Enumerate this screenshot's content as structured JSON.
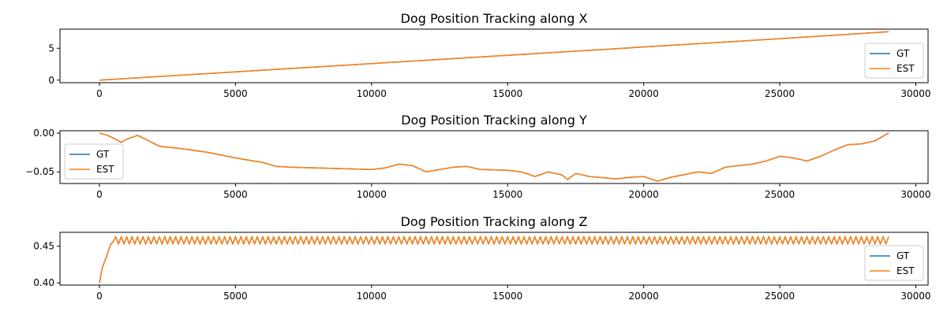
{
  "colors": {
    "gt": "#1f77b4",
    "est": "#ff7f0e",
    "axis": "#000000",
    "legend_border": "#cccccc"
  },
  "chart_data": [
    {
      "type": "line",
      "title": "Dog Position Tracking along X",
      "xlim": [
        -1450,
        30450
      ],
      "ylim": [
        -0.4,
        8.0
      ],
      "xticks": [
        0,
        5000,
        10000,
        15000,
        20000,
        25000,
        30000
      ],
      "xtick_labels": [
        "0",
        "5000",
        "10000",
        "15000",
        "20000",
        "25000",
        "30000"
      ],
      "yticks": [
        0,
        5
      ],
      "ytick_labels": [
        "0",
        "5"
      ],
      "legend": {
        "loc": "lower right",
        "entries": [
          "GT",
          "EST"
        ]
      },
      "series": [
        {
          "name": "GT",
          "x": [
            0,
            5000,
            10000,
            15000,
            20000,
            25000,
            29000
          ],
          "values": [
            0.0,
            1.3,
            2.6,
            3.9,
            5.2,
            6.5,
            7.6
          ]
        },
        {
          "name": "EST",
          "x": [
            0,
            5000,
            10000,
            15000,
            20000,
            25000,
            29000
          ],
          "values": [
            0.0,
            1.3,
            2.6,
            3.9,
            5.2,
            6.5,
            7.6
          ]
        }
      ]
    },
    {
      "type": "line",
      "title": "Dog Position Tracking along Y",
      "xlim": [
        -1450,
        30450
      ],
      "ylim": [
        -0.065,
        0.003
      ],
      "xticks": [
        0,
        5000,
        10000,
        15000,
        20000,
        25000,
        30000
      ],
      "xtick_labels": [
        "0",
        "5000",
        "10000",
        "15000",
        "20000",
        "25000",
        "30000"
      ],
      "yticks": [
        0.0,
        -0.05
      ],
      "ytick_labels": [
        "0.00",
        "−0.05"
      ],
      "legend": {
        "loc": "lower left",
        "entries": [
          "GT",
          "EST"
        ]
      },
      "series": [
        {
          "name": "GT",
          "x": [
            0,
            300,
            600,
            800,
            1000,
            1400,
            1700,
            2200,
            3000,
            4000,
            5000,
            6000,
            6500,
            7000,
            8000,
            9000,
            10000,
            10500,
            11000,
            11500,
            12000,
            13000,
            13500,
            14000,
            15000,
            15500,
            16000,
            16500,
            17000,
            17200,
            17500,
            18000,
            19000,
            19500,
            20000,
            20500,
            21000,
            22000,
            22500,
            23000,
            24000,
            24500,
            25000,
            25500,
            26000,
            26500,
            27000,
            27500,
            28000,
            28500,
            29000
          ],
          "values": [
            0.0,
            -0.003,
            -0.008,
            -0.012,
            -0.008,
            -0.003,
            -0.008,
            -0.017,
            -0.02,
            -0.025,
            -0.032,
            -0.038,
            -0.043,
            -0.044,
            -0.045,
            -0.046,
            -0.047,
            -0.045,
            -0.04,
            -0.042,
            -0.05,
            -0.044,
            -0.043,
            -0.047,
            -0.048,
            -0.05,
            -0.056,
            -0.05,
            -0.054,
            -0.06,
            -0.052,
            -0.056,
            -0.059,
            -0.057,
            -0.056,
            -0.062,
            -0.057,
            -0.05,
            -0.052,
            -0.044,
            -0.04,
            -0.036,
            -0.03,
            -0.032,
            -0.036,
            -0.03,
            -0.022,
            -0.015,
            -0.014,
            -0.01,
            0.0
          ]
        },
        {
          "name": "EST",
          "x": [
            0,
            300,
            600,
            800,
            1000,
            1400,
            1700,
            2200,
            3000,
            4000,
            5000,
            6000,
            6500,
            7000,
            8000,
            9000,
            10000,
            10500,
            11000,
            11500,
            12000,
            13000,
            13500,
            14000,
            15000,
            15500,
            16000,
            16500,
            17000,
            17200,
            17500,
            18000,
            19000,
            19500,
            20000,
            20500,
            21000,
            22000,
            22500,
            23000,
            24000,
            24500,
            25000,
            25500,
            26000,
            26500,
            27000,
            27500,
            28000,
            28500,
            29000
          ],
          "values": [
            0.0,
            -0.003,
            -0.008,
            -0.012,
            -0.008,
            -0.003,
            -0.008,
            -0.017,
            -0.02,
            -0.025,
            -0.032,
            -0.038,
            -0.043,
            -0.044,
            -0.045,
            -0.046,
            -0.047,
            -0.045,
            -0.04,
            -0.042,
            -0.05,
            -0.044,
            -0.043,
            -0.047,
            -0.048,
            -0.05,
            -0.056,
            -0.05,
            -0.054,
            -0.06,
            -0.052,
            -0.056,
            -0.059,
            -0.057,
            -0.056,
            -0.062,
            -0.057,
            -0.05,
            -0.052,
            -0.044,
            -0.04,
            -0.036,
            -0.03,
            -0.032,
            -0.036,
            -0.03,
            -0.022,
            -0.015,
            -0.014,
            -0.01,
            0.0
          ]
        }
      ]
    },
    {
      "type": "line",
      "title": "Dog Position Tracking along Z",
      "xlim": [
        -1450,
        30450
      ],
      "ylim": [
        0.397,
        0.469
      ],
      "xticks": [
        0,
        5000,
        10000,
        15000,
        20000,
        25000,
        30000
      ],
      "xtick_labels": [
        "0",
        "5000",
        "10000",
        "15000",
        "20000",
        "25000",
        "30000"
      ],
      "yticks": [
        0.4,
        0.45
      ],
      "ytick_labels": [
        "0.40",
        "0.45"
      ],
      "legend": {
        "loc": "lower right",
        "entries": [
          "GT",
          "EST"
        ]
      },
      "oscillation": {
        "start_x": 600,
        "end_x": 29000,
        "period": 200,
        "low": 0.453,
        "high": 0.463
      },
      "series": [
        {
          "name": "GT",
          "x": [
            0,
            100,
            200,
            300,
            400,
            500,
            600
          ],
          "values": [
            0.4,
            0.42,
            0.43,
            0.44,
            0.452,
            0.456,
            0.463
          ]
        },
        {
          "name": "EST",
          "x": [
            0,
            100,
            200,
            300,
            400,
            500,
            600
          ],
          "values": [
            0.4,
            0.42,
            0.43,
            0.44,
            0.452,
            0.456,
            0.463
          ]
        }
      ]
    }
  ]
}
